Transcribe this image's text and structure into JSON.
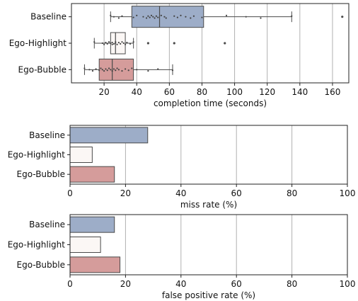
{
  "colors": {
    "Baseline": "#9dadc8",
    "Ego-Highlight": "#fbf7f5",
    "Ego-Bubble": "#d59c9b",
    "edge": "#4a4a4a",
    "grid": "#b0b0b0"
  },
  "chart_data": [
    {
      "type": "box",
      "categories": [
        "Baseline",
        "Ego-Highlight",
        "Ego-Bubble"
      ],
      "xlabel": "completion time (seconds)",
      "xlim": [
        0,
        170
      ],
      "xticks": [
        20,
        40,
        60,
        80,
        100,
        120,
        140,
        160
      ],
      "grid": "vertical",
      "boxes": [
        {
          "name": "Baseline",
          "whislo": 24,
          "q1": 37,
          "med": 54,
          "q3": 81,
          "whishi": 135,
          "fliers": [
            166
          ]
        },
        {
          "name": "Ego-Highlight",
          "whislo": 14,
          "q1": 24,
          "med": 27,
          "q3": 33,
          "whishi": 38,
          "fliers": [
            47,
            63,
            94
          ]
        },
        {
          "name": "Ego-Bubble",
          "whislo": 8,
          "q1": 17,
          "med": 25,
          "q3": 38,
          "whishi": 62,
          "fliers": []
        }
      ],
      "points": [
        {
          "name": "Baseline",
          "values": [
            24,
            26,
            29,
            31,
            38,
            40,
            44,
            46,
            47,
            48,
            49,
            50,
            51,
            52,
            53,
            55,
            57,
            58,
            63,
            65,
            67,
            70,
            73,
            75,
            80,
            95,
            107,
            116,
            135
          ]
        },
        {
          "name": "Ego-Highlight",
          "values": [
            14,
            19,
            20,
            21,
            22,
            23,
            24,
            25,
            25,
            26,
            27,
            27,
            28,
            29,
            30,
            31,
            32,
            33,
            34,
            36,
            38
          ]
        },
        {
          "name": "Ego-Bubble",
          "values": [
            8,
            11,
            13,
            15,
            17,
            18,
            19,
            20,
            21,
            22,
            23,
            24,
            25,
            26,
            27,
            28,
            29,
            31,
            33,
            35,
            37,
            40,
            47,
            53,
            62
          ]
        }
      ]
    },
    {
      "type": "bar",
      "orientation": "horizontal",
      "categories": [
        "Baseline",
        "Ego-Highlight",
        "Ego-Bubble"
      ],
      "values": [
        28,
        8,
        16
      ],
      "xlabel": "miss rate (%)",
      "xlim": [
        0,
        100
      ],
      "xticks": [
        0,
        20,
        40,
        60,
        80,
        100
      ],
      "grid": "vertical"
    },
    {
      "type": "bar",
      "orientation": "horizontal",
      "categories": [
        "Baseline",
        "Ego-Highlight",
        "Ego-Bubble"
      ],
      "values": [
        16,
        11,
        18
      ],
      "xlabel": "false positive rate (%)",
      "xlim": [
        0,
        100
      ],
      "xticks": [
        0,
        20,
        40,
        60,
        80,
        100
      ],
      "grid": "vertical"
    }
  ]
}
